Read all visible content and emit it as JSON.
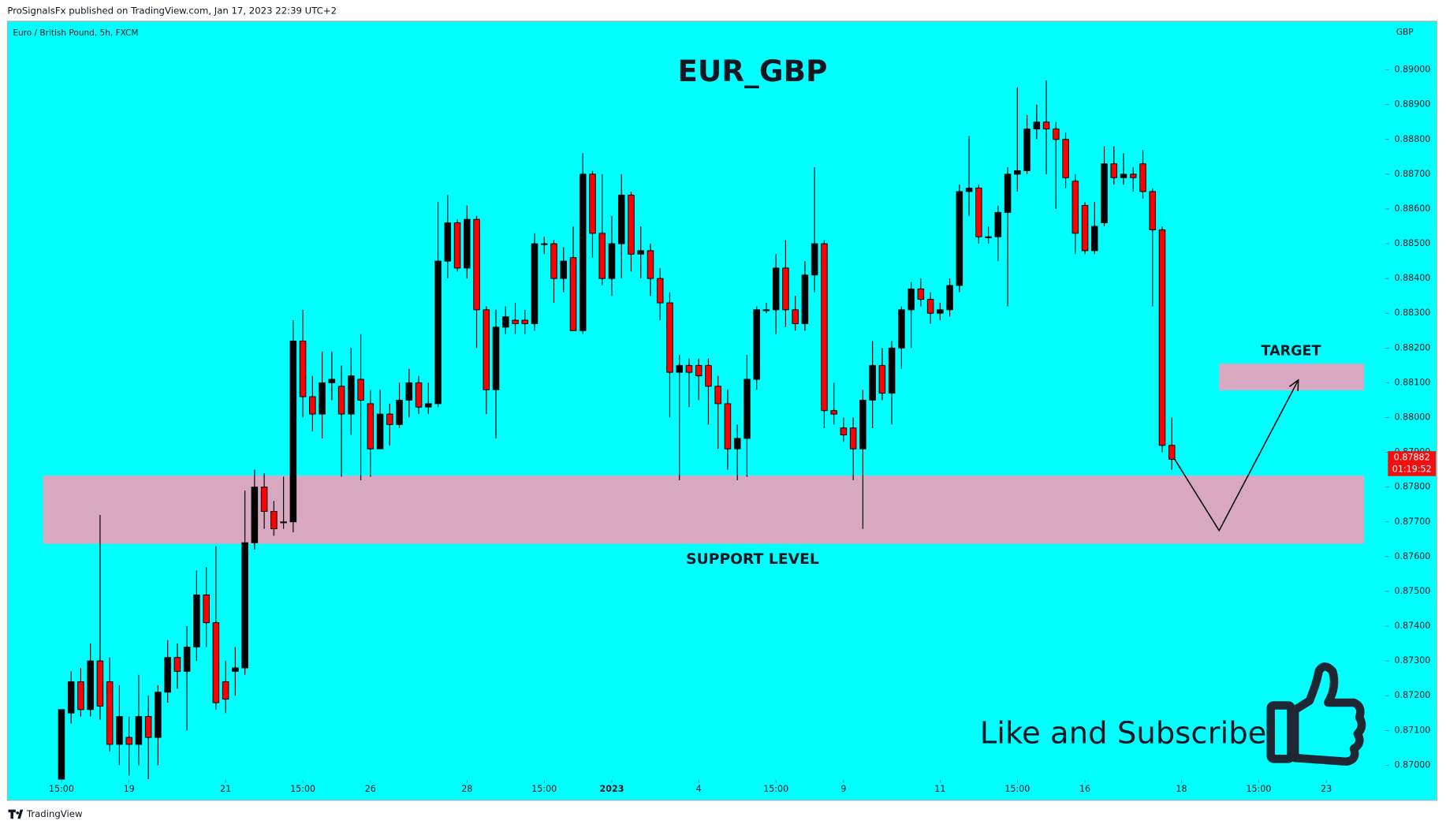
{
  "chart_data": {
    "type": "candlestick",
    "title": "EUR_GBP",
    "publisher_line": "ProSignalsFx published on TradingView.com, Jan 17, 2023 22:39 UTC+2",
    "symbol_line": "Euro / British Pound, 5h, FXCM",
    "currency": "GBP",
    "support_label": "SUPPORT LEVEL",
    "target_label": "TARGET",
    "call_to_action": "Like and Subscribe",
    "brand": "TradingView",
    "up_color": "#000000",
    "down_color": "#ff0000",
    "zone_color": "#d8a8c0",
    "background": "#00ffff",
    "support_zone": [
      0.87637,
      0.87833
    ],
    "target_zone": [
      0.88078,
      0.88155
    ],
    "projection": [
      0.8788,
      0.87675,
      0.88108
    ],
    "last_price": {
      "value": 0.87882,
      "label": "0.87882"
    },
    "countdown": "01:19:52",
    "xlim": [
      -5.6,
      136.9
    ],
    "xticks": [
      {
        "value": 0,
        "label": "15:00"
      },
      {
        "value": 7,
        "label": "19"
      },
      {
        "value": 17,
        "label": "21"
      },
      {
        "value": 25,
        "label": "15:00"
      },
      {
        "value": 32,
        "label": "26"
      },
      {
        "value": 42,
        "label": "28"
      },
      {
        "value": 50,
        "label": "15:00"
      },
      {
        "value": 57,
        "label": "2023"
      },
      {
        "value": 66,
        "label": "4"
      },
      {
        "value": 74,
        "label": "15:00"
      },
      {
        "value": 81,
        "label": "9"
      },
      {
        "value": 91,
        "label": "11"
      },
      {
        "value": 99,
        "label": "15:00"
      },
      {
        "value": 106,
        "label": "16"
      },
      {
        "value": 116,
        "label": "18"
      },
      {
        "value": 124,
        "label": "15:00"
      },
      {
        "value": 131,
        "label": "23"
      }
    ],
    "ylim": [
      0.8696,
      0.8914
    ],
    "yticks": [
      {
        "value": 0.87,
        "label": "0.87000"
      },
      {
        "value": 0.871,
        "label": "0.87100"
      },
      {
        "value": 0.872,
        "label": "0.87200"
      },
      {
        "value": 0.873,
        "label": "0.87300"
      },
      {
        "value": 0.874,
        "label": "0.87400"
      },
      {
        "value": 0.875,
        "label": "0.87500"
      },
      {
        "value": 0.876,
        "label": "0.87600"
      },
      {
        "value": 0.877,
        "label": "0.87700"
      },
      {
        "value": 0.878,
        "label": "0.87800"
      },
      {
        "value": 0.879,
        "label": "0.87900"
      },
      {
        "value": 0.88,
        "label": "0.88000"
      },
      {
        "value": 0.881,
        "label": "0.88100"
      },
      {
        "value": 0.882,
        "label": "0.88200"
      },
      {
        "value": 0.883,
        "label": "0.88300"
      },
      {
        "value": 0.884,
        "label": "0.88400"
      },
      {
        "value": 0.885,
        "label": "0.88500"
      },
      {
        "value": 0.886,
        "label": "0.88600"
      },
      {
        "value": 0.887,
        "label": "0.88700"
      },
      {
        "value": 0.888,
        "label": "0.88800"
      },
      {
        "value": 0.889,
        "label": "0.88900"
      },
      {
        "value": 0.89,
        "label": "0.89000"
      }
    ],
    "open": [
      0.8696,
      0.8715,
      0.8724,
      0.8716,
      0.873,
      0.8724,
      0.8706,
      0.8708,
      0.8706,
      0.8714,
      0.8708,
      0.8721,
      0.8731,
      0.8727,
      0.8734,
      0.8749,
      0.8741,
      0.8724,
      0.8727,
      0.8728,
      0.8764,
      0.878,
      0.8773,
      0.877,
      0.877,
      0.8822,
      0.8806,
      0.8801,
      0.881,
      0.8809,
      0.8801,
      0.8811,
      0.8804,
      0.8791,
      0.8801,
      0.8798,
      0.8805,
      0.881,
      0.8803,
      0.8804,
      0.8845,
      0.8856,
      0.8843,
      0.8857,
      0.8831,
      0.8808,
      0.8826,
      0.8828,
      0.8828,
      0.8827,
      0.885,
      0.885,
      0.884,
      0.8846,
      0.8825,
      0.887,
      0.8853,
      0.884,
      0.885,
      0.8864,
      0.8847,
      0.8848,
      0.884,
      0.8833,
      0.8813,
      0.8815,
      0.8815,
      0.8815,
      0.8809,
      0.8804,
      0.8791,
      0.8794,
      0.8811,
      0.8831,
      0.8831,
      0.8843,
      0.8831,
      0.8827,
      0.8841,
      0.885,
      0.8802,
      0.8797,
      0.8797,
      0.8791,
      0.8805,
      0.8815,
      0.8807,
      0.882,
      0.8831,
      0.8837,
      0.8834,
      0.883,
      0.8831,
      0.8838,
      0.8865,
      0.8866,
      0.8852,
      0.8852,
      0.8859,
      0.887,
      0.8871,
      0.8883,
      0.8885,
      0.8883,
      0.888,
      0.8868,
      0.8861,
      0.8848,
      0.8856,
      0.8873,
      0.8869,
      0.887,
      0.8873,
      0.8865,
      0.8854,
      0.8792
    ],
    "high": [
      0.8716,
      0.8727,
      0.8728,
      0.8735,
      0.8772,
      0.8731,
      0.8723,
      0.8714,
      0.8726,
      0.872,
      0.8723,
      0.8736,
      0.8735,
      0.874,
      0.8756,
      0.8757,
      0.8763,
      0.873,
      0.8734,
      0.8779,
      0.8785,
      0.8784,
      0.8776,
      0.8783,
      0.8828,
      0.8831,
      0.8812,
      0.8819,
      0.8819,
      0.8815,
      0.882,
      0.8824,
      0.8808,
      0.8808,
      0.8804,
      0.881,
      0.8814,
      0.8812,
      0.881,
      0.8862,
      0.8864,
      0.8857,
      0.8861,
      0.8858,
      0.8832,
      0.8831,
      0.8832,
      0.8833,
      0.8831,
      0.8853,
      0.8852,
      0.8851,
      0.8849,
      0.8855,
      0.8876,
      0.8871,
      0.887,
      0.8858,
      0.887,
      0.8865,
      0.8855,
      0.885,
      0.8843,
      0.8836,
      0.8818,
      0.8817,
      0.8817,
      0.8817,
      0.8812,
      0.8808,
      0.8798,
      0.8818,
      0.8832,
      0.8833,
      0.8847,
      0.8851,
      0.8835,
      0.8845,
      0.8872,
      0.8851,
      0.881,
      0.88,
      0.88,
      0.8808,
      0.8822,
      0.882,
      0.8822,
      0.8832,
      0.8839,
      0.884,
      0.8836,
      0.8833,
      0.884,
      0.8867,
      0.8881,
      0.8867,
      0.8855,
      0.8861,
      0.8872,
      0.8895,
      0.8887,
      0.889,
      0.8897,
      0.8885,
      0.8882,
      0.887,
      0.8862,
      0.8862,
      0.8878,
      0.8878,
      0.8876,
      0.8872,
      0.8877,
      0.8866,
      0.8855,
      0.88
    ],
    "low": [
      0.8696,
      0.8712,
      0.8714,
      0.8714,
      0.8713,
      0.8704,
      0.87,
      0.8697,
      0.87,
      0.8696,
      0.87,
      0.8718,
      0.8722,
      0.871,
      0.873,
      0.8734,
      0.8716,
      0.8715,
      0.872,
      0.8726,
      0.8762,
      0.8768,
      0.8766,
      0.8768,
      0.8767,
      0.88,
      0.8796,
      0.8794,
      0.8805,
      0.8783,
      0.8795,
      0.8782,
      0.8783,
      0.8791,
      0.8792,
      0.8797,
      0.88,
      0.8801,
      0.8801,
      0.8803,
      0.884,
      0.8842,
      0.884,
      0.882,
      0.8801,
      0.8794,
      0.8824,
      0.8824,
      0.8824,
      0.8825,
      0.8847,
      0.8833,
      0.8836,
      0.8825,
      0.8824,
      0.8846,
      0.8838,
      0.8835,
      0.884,
      0.8842,
      0.884,
      0.8835,
      0.8828,
      0.88,
      0.8782,
      0.8803,
      0.8805,
      0.8798,
      0.8791,
      0.8785,
      0.8782,
      0.8783,
      0.8808,
      0.883,
      0.8824,
      0.8826,
      0.8825,
      0.8825,
      0.8836,
      0.8797,
      0.8798,
      0.8793,
      0.8782,
      0.8768,
      0.8797,
      0.8805,
      0.8798,
      0.8814,
      0.882,
      0.8832,
      0.8827,
      0.8828,
      0.8829,
      0.8836,
      0.8858,
      0.885,
      0.885,
      0.8845,
      0.8832,
      0.8865,
      0.887,
      0.888,
      0.887,
      0.886,
      0.8866,
      0.8847,
      0.8847,
      0.8847,
      0.8855,
      0.8867,
      0.8867,
      0.8865,
      0.8863,
      0.8832,
      0.879,
      0.8785
    ],
    "close": [
      0.8716,
      0.8724,
      0.8716,
      0.873,
      0.8717,
      0.8706,
      0.8714,
      0.8706,
      0.8714,
      0.8708,
      0.8721,
      0.8731,
      0.8727,
      0.8734,
      0.8749,
      0.8741,
      0.8718,
      0.8719,
      0.8728,
      0.8764,
      0.878,
      0.8773,
      0.8768,
      0.877,
      0.8822,
      0.8806,
      0.8801,
      0.881,
      0.8811,
      0.8801,
      0.8812,
      0.8805,
      0.8791,
      0.8801,
      0.8798,
      0.8805,
      0.881,
      0.8803,
      0.8804,
      0.8845,
      0.8856,
      0.8843,
      0.8857,
      0.8831,
      0.8808,
      0.8826,
      0.8829,
      0.8827,
      0.8827,
      0.885,
      0.885,
      0.884,
      0.8845,
      0.8825,
      0.887,
      0.8853,
      0.884,
      0.885,
      0.8864,
      0.8847,
      0.8848,
      0.884,
      0.8833,
      0.8813,
      0.8815,
      0.8813,
      0.8812,
      0.8809,
      0.8804,
      0.8791,
      0.8794,
      0.8811,
      0.8831,
      0.8831,
      0.8843,
      0.8831,
      0.8827,
      0.8841,
      0.885,
      0.8802,
      0.8801,
      0.8795,
      0.8791,
      0.8805,
      0.8815,
      0.8807,
      0.882,
      0.8831,
      0.8837,
      0.8834,
      0.883,
      0.8831,
      0.8838,
      0.8865,
      0.8866,
      0.8852,
      0.8852,
      0.8859,
      0.887,
      0.8871,
      0.8883,
      0.8885,
      0.8883,
      0.888,
      0.8869,
      0.8853,
      0.8848,
      0.8855,
      0.8873,
      0.8869,
      0.887,
      0.8869,
      0.8865,
      0.8854,
      0.8792,
      0.8788
    ]
  }
}
